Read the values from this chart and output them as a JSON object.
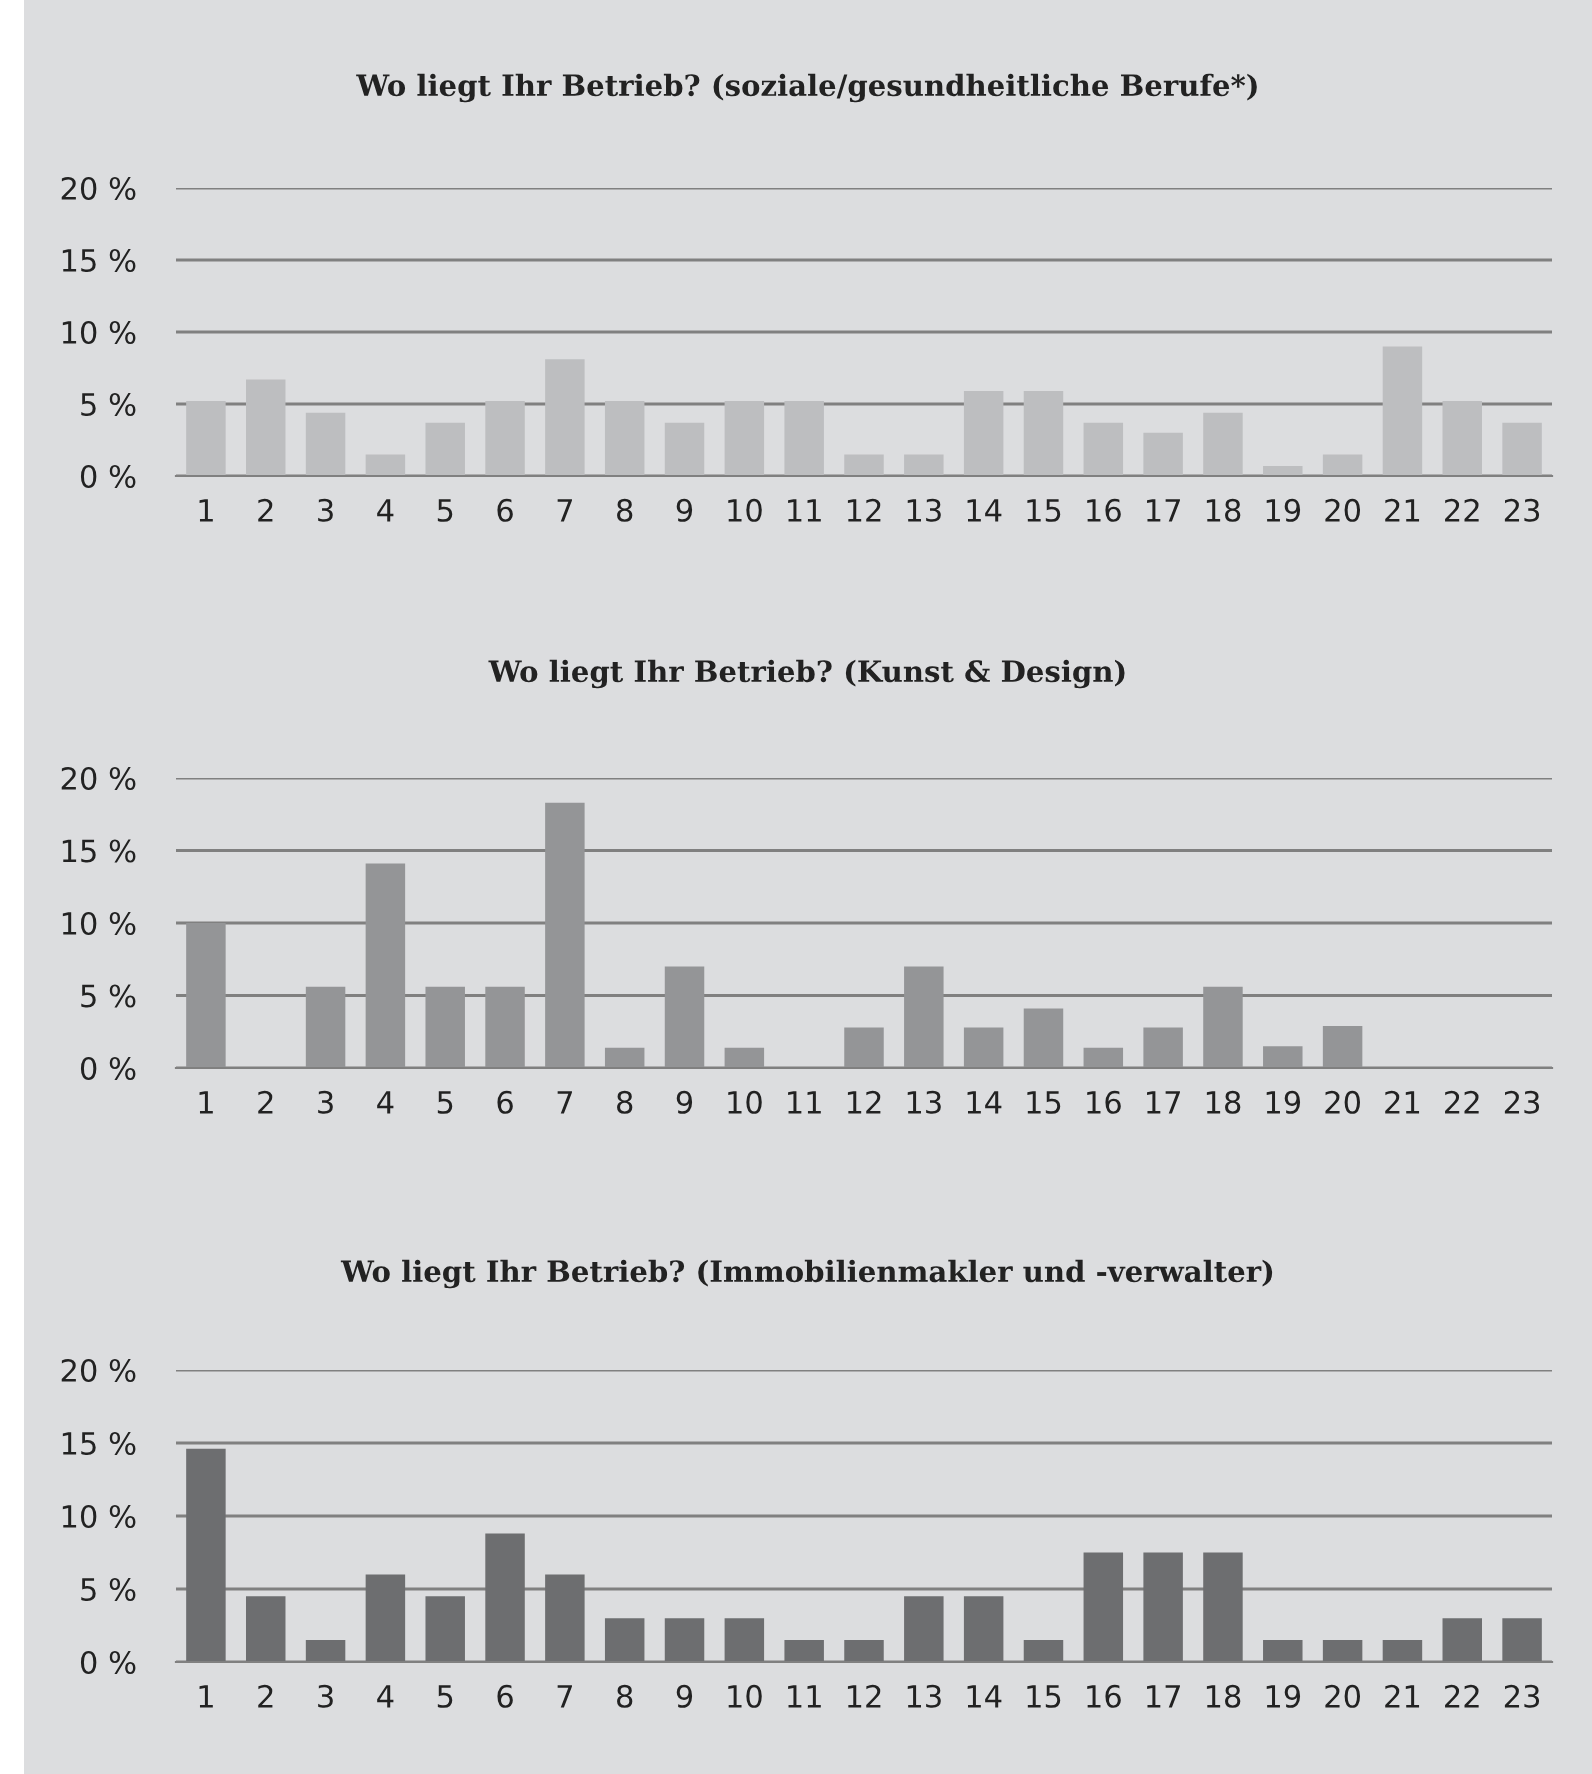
{
  "chart_data": [
    {
      "type": "bar",
      "title": "Wo liegt Ihr Betrieb? (soziale/gesundheitliche Berufe*)",
      "categories": [
        "1",
        "2",
        "3",
        "4",
        "5",
        "6",
        "7",
        "8",
        "9",
        "10",
        "11",
        "12",
        "13",
        "14",
        "15",
        "16",
        "17",
        "18",
        "19",
        "20",
        "21",
        "22",
        "23"
      ],
      "values": [
        5.2,
        6.7,
        4.4,
        1.5,
        3.7,
        5.2,
        8.1,
        5.2,
        3.7,
        5.2,
        5.2,
        1.5,
        1.5,
        5.9,
        5.9,
        3.7,
        3.0,
        4.4,
        0.7,
        1.5,
        9.0,
        5.2,
        3.7
      ],
      "color": "#bdbec0",
      "ylim": [
        0,
        20
      ],
      "yticks": [
        {
          "value": 0,
          "label": "0 %"
        },
        {
          "value": 5,
          "label": "5 %"
        },
        {
          "value": 10,
          "label": "10 %"
        },
        {
          "value": 15,
          "label": "15 %"
        },
        {
          "value": 20,
          "label": "20 %"
        }
      ],
      "grid": "y"
    },
    {
      "type": "bar",
      "title": "Wo liegt Ihr Betrieb? (Kunst & Design)",
      "categories": [
        "1",
        "2",
        "3",
        "4",
        "5",
        "6",
        "7",
        "8",
        "9",
        "10",
        "11",
        "12",
        "13",
        "14",
        "15",
        "16",
        "17",
        "18",
        "19",
        "20",
        "21",
        "22",
        "23"
      ],
      "values": [
        10.0,
        0,
        5.6,
        14.1,
        5.6,
        5.6,
        18.3,
        1.4,
        7.0,
        1.4,
        0,
        2.8,
        7.0,
        2.8,
        4.1,
        1.4,
        2.8,
        5.6,
        1.5,
        2.9,
        0,
        0,
        0
      ],
      "color": "#949597",
      "ylim": [
        0,
        20
      ],
      "yticks": [
        {
          "value": 0,
          "label": "0 %"
        },
        {
          "value": 5,
          "label": "5 %"
        },
        {
          "value": 10,
          "label": "10 %"
        },
        {
          "value": 15,
          "label": "15 %"
        },
        {
          "value": 20,
          "label": "20 %"
        }
      ],
      "grid": "y"
    },
    {
      "type": "bar",
      "title": "Wo liegt Ihr Betrieb? (Immobilienmakler und -verwalter)",
      "categories": [
        "1",
        "2",
        "3",
        "4",
        "5",
        "6",
        "7",
        "8",
        "9",
        "10",
        "11",
        "12",
        "13",
        "14",
        "15",
        "16",
        "17",
        "18",
        "19",
        "20",
        "21",
        "22",
        "23"
      ],
      "values": [
        14.6,
        4.5,
        1.5,
        6.0,
        4.5,
        8.8,
        6.0,
        3.0,
        3.0,
        3.0,
        1.5,
        1.5,
        4.5,
        4.5,
        1.5,
        7.5,
        7.5,
        7.5,
        1.5,
        1.5,
        1.5,
        3.0,
        3.0
      ],
      "color": "#6d6e70",
      "ylim": [
        0,
        20
      ],
      "yticks": [
        {
          "value": 0,
          "label": "0 %"
        },
        {
          "value": 5,
          "label": "5 %"
        },
        {
          "value": 10,
          "label": "10 %"
        },
        {
          "value": 15,
          "label": "15 %"
        },
        {
          "value": 20,
          "label": "20 %"
        }
      ],
      "grid": "y"
    }
  ]
}
